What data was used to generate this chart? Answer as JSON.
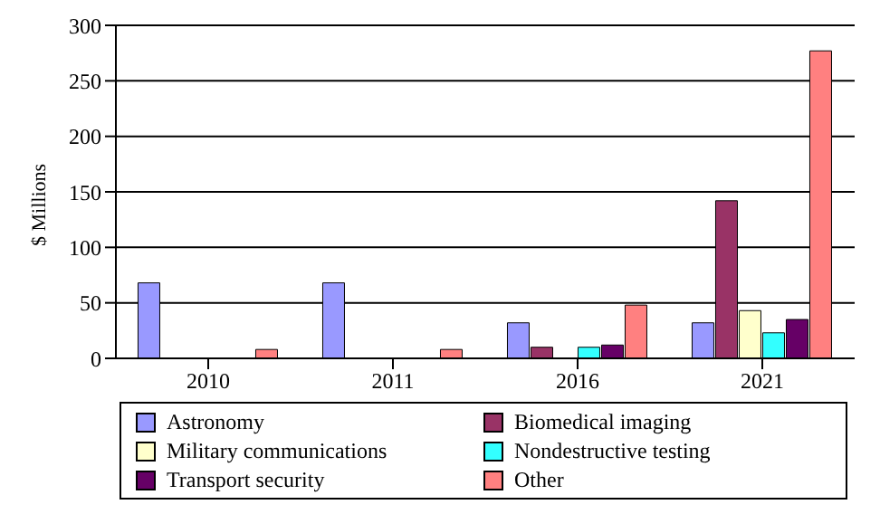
{
  "chart_data": {
    "type": "bar",
    "ylabel": "$ Millions",
    "categories": [
      "2010",
      "2011",
      "2016",
      "2021"
    ],
    "series": [
      {
        "name": "Astronomy",
        "color": "#9999ff",
        "values": [
          68,
          68,
          32,
          32
        ]
      },
      {
        "name": "Biomedical imaging",
        "color": "#993366",
        "values": [
          0,
          0,
          10,
          142
        ]
      },
      {
        "name": "Military communications",
        "color": "#ffffcc",
        "values": [
          0,
          0,
          0,
          43
        ]
      },
      {
        "name": "Nondestructive testing",
        "color": "#33ffff",
        "values": [
          0,
          0,
          10,
          23
        ]
      },
      {
        "name": "Transport security",
        "color": "#660066",
        "values": [
          0,
          0,
          12,
          35
        ]
      },
      {
        "name": "Other",
        "color": "#ff8080",
        "values": [
          8,
          8,
          48,
          277
        ]
      }
    ],
    "ylim": [
      0,
      300
    ],
    "yticks": [
      0,
      50,
      100,
      150,
      200,
      250,
      300
    ],
    "grid": "y",
    "legend": "bottom"
  }
}
